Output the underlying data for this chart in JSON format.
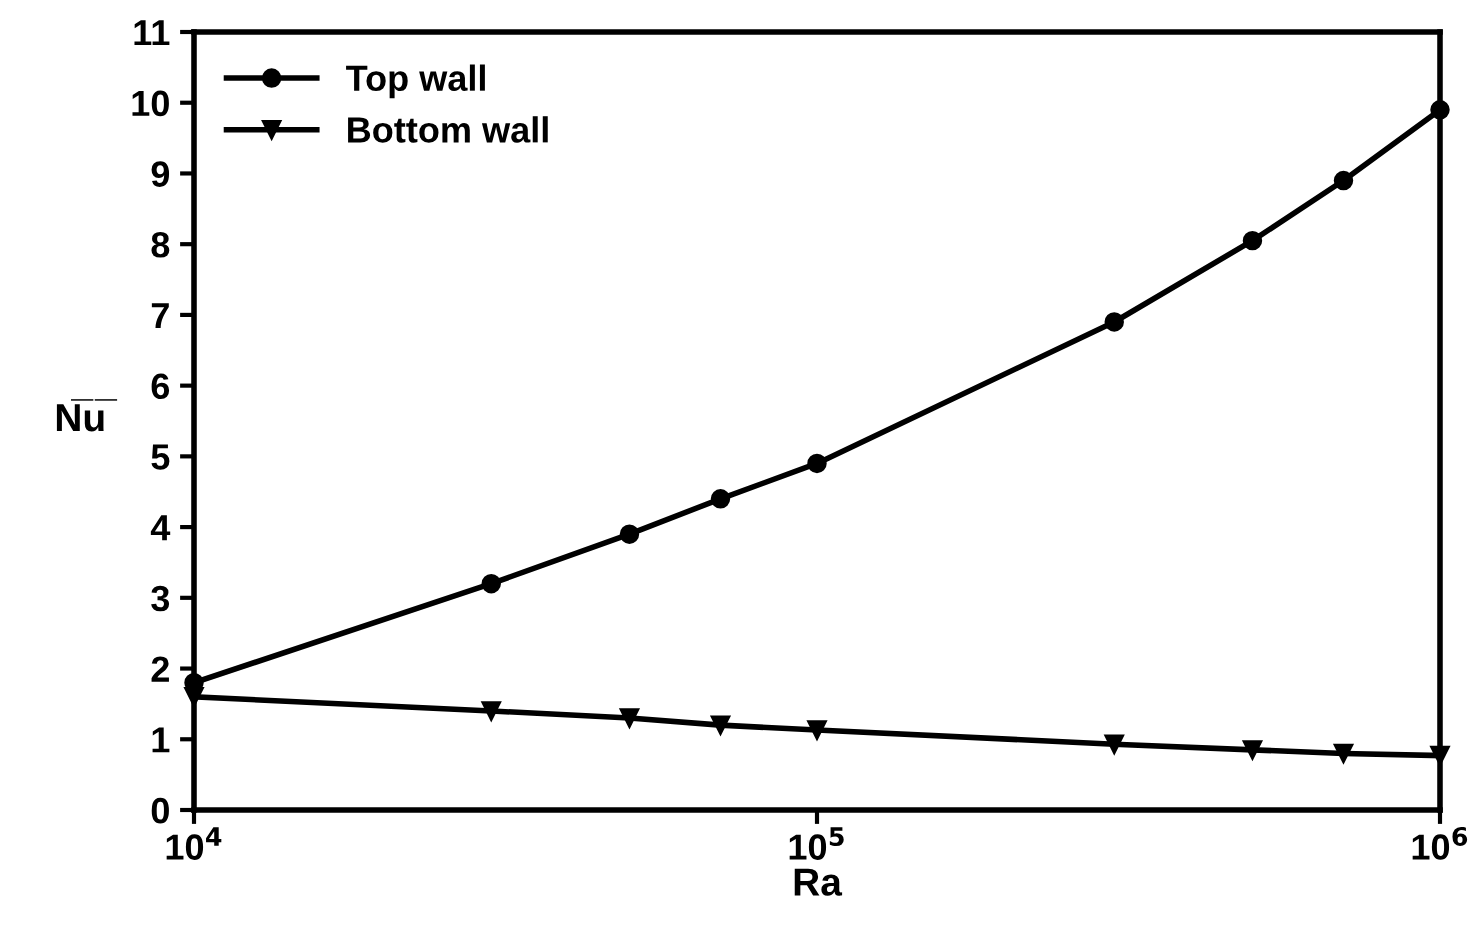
{
  "chart_data": {
    "type": "line",
    "xlabel": "Ra",
    "ylabel": "N̅u̅",
    "log": "x",
    "xlim": [
      10000,
      1000000
    ],
    "xticks": [
      {
        "value": 10000,
        "label": "10$^{4}$"
      },
      {
        "value": 100000,
        "label": "10$^{5}$"
      },
      {
        "value": 1000000,
        "label": "10$^{6}$"
      }
    ],
    "ylim": [
      0,
      11
    ],
    "yticks": [
      0,
      1,
      2,
      3,
      4,
      5,
      6,
      7,
      8,
      9,
      10,
      11
    ],
    "grid": false,
    "legend": "top left",
    "line_style": "solid",
    "series": [
      {
        "name": "Top wall",
        "color": "#000000",
        "marker": "circle",
        "x": [
          10000,
          30000,
          50000,
          70000,
          100000,
          300000,
          500000,
          700000,
          1000000
        ],
        "values": [
          1.8,
          3.2,
          3.9,
          4.4,
          4.9,
          6.9,
          8.05,
          8.9,
          9.9
        ]
      },
      {
        "name": "Bottom wall",
        "color": "#000000",
        "marker": "triangle",
        "x": [
          10000,
          30000,
          50000,
          70000,
          100000,
          300000,
          500000,
          700000,
          1000000
        ],
        "values": [
          1.6,
          1.4,
          1.3,
          1.2,
          1.13,
          0.93,
          0.85,
          0.8,
          0.77
        ]
      }
    ]
  }
}
